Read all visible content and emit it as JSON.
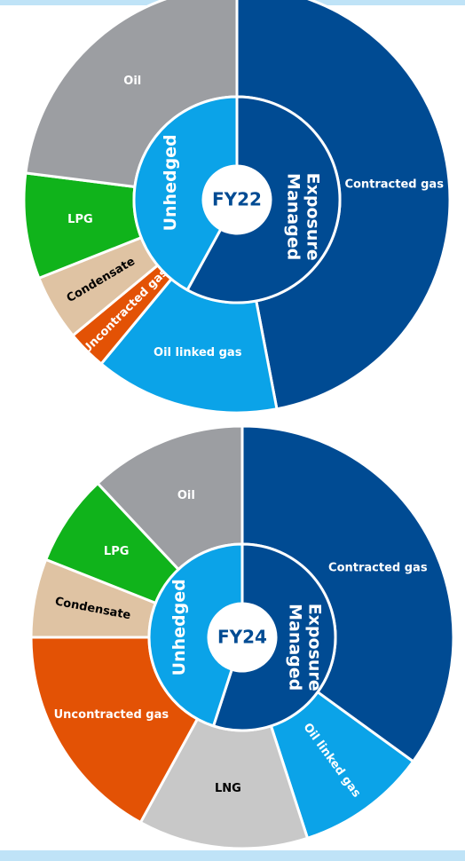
{
  "chart_data": [
    {
      "type": "sunburst",
      "center_label": "FY22",
      "categories": [
        "Contracted gas",
        "Oil linked gas",
        "Uncontracted gas",
        "Condensate",
        "LPG",
        "Oil"
      ],
      "values": [
        47,
        14,
        3,
        5,
        8,
        23
      ],
      "colors": [
        "#004b93",
        "#0ba3e8",
        "#e35205",
        "#dfc3a3",
        "#10b31b",
        "#9c9ea2"
      ],
      "inner": {
        "categories": [
          "Exposure Managed",
          "Unhedged"
        ],
        "values": [
          58,
          42
        ],
        "colors": [
          "#004b93",
          "#0ba3e8"
        ]
      }
    },
    {
      "type": "sunburst",
      "center_label": "FY24",
      "categories": [
        "Contracted gas",
        "Oil linked gas",
        "LNG",
        "Uncontracted gas",
        "Condensate",
        "LPG",
        "Oil"
      ],
      "values": [
        35,
        10,
        13,
        17,
        6,
        7,
        12
      ],
      "colors": [
        "#004b93",
        "#0ba3e8",
        "#c8c8c8",
        "#e35205",
        "#dfc3a3",
        "#10b31b",
        "#9c9ea2"
      ],
      "inner": {
        "categories": [
          "Exposure Managed",
          "Unhedged"
        ],
        "values": [
          55,
          45
        ],
        "colors": [
          "#004b93",
          "#0ba3e8"
        ]
      }
    }
  ]
}
